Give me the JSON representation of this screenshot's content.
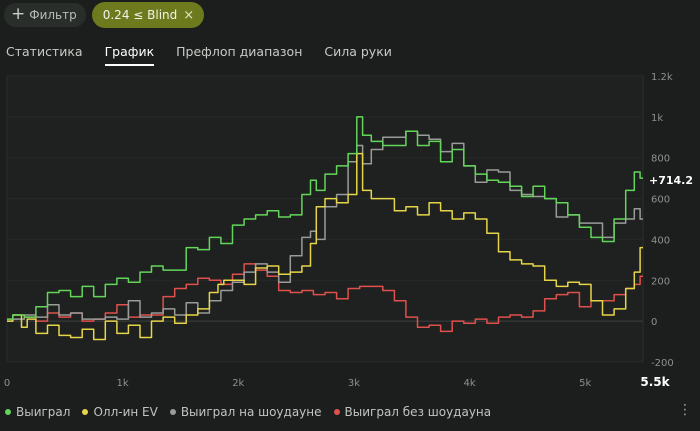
{
  "filters": {
    "add_filter_label": "Фильтр",
    "active_chip_label": "0.24 ≤ Blind",
    "remove_icon": "×"
  },
  "tabs": [
    {
      "label": "Статистика",
      "active": false
    },
    {
      "label": "График",
      "active": true
    },
    {
      "label": "Префлоп диапазон",
      "active": false
    },
    {
      "label": "Сила руки",
      "active": false
    }
  ],
  "colors": {
    "background": "#1b1e1c",
    "accent_chip": "#6e7a1e",
    "won": "#63d65a",
    "allin_ev": "#e6d54a",
    "showdown": "#9a9c9a",
    "non_showdown": "#e0504c"
  },
  "legend": {
    "won": "Выиграл",
    "allin_ev": "Олл-ин EV",
    "showdown": "Выиграл на шоудауне",
    "non_showdown": "Выиграл без шоудауна"
  },
  "chart_data": {
    "type": "line",
    "xlim": [
      0,
      5500
    ],
    "ylim": [
      -200,
      1200
    ],
    "x_ticks": [
      "0",
      "1k",
      "2k",
      "3k",
      "4k",
      "5k",
      "5.5k"
    ],
    "y_ticks": [
      "1.2k",
      "1k",
      "800",
      "600",
      "400",
      "200",
      "0",
      "-200"
    ],
    "y_tick_values": [
      1200,
      1000,
      800,
      600,
      400,
      200,
      0,
      -200
    ],
    "x_tick_values": [
      0,
      1000,
      2000,
      3000,
      4000,
      5000,
      5500
    ],
    "end_label": "+714.2",
    "series": [
      {
        "name": "Выиграл",
        "color": "#63d65a",
        "x": [
          0,
          100,
          200,
          300,
          400,
          500,
          600,
          700,
          800,
          900,
          1000,
          1100,
          1200,
          1300,
          1400,
          1500,
          1600,
          1700,
          1800,
          1900,
          2000,
          2100,
          2200,
          2300,
          2400,
          2500,
          2600,
          2650,
          2700,
          2800,
          2900,
          3000,
          3050,
          3100,
          3200,
          3300,
          3400,
          3500,
          3600,
          3700,
          3800,
          3900,
          4000,
          4100,
          4200,
          4300,
          4400,
          4500,
          4600,
          4700,
          4800,
          4900,
          5000,
          5100,
          5200,
          5300,
          5400,
          5450,
          5500
        ],
        "y": [
          10,
          30,
          20,
          70,
          140,
          150,
          120,
          170,
          120,
          180,
          210,
          190,
          240,
          270,
          250,
          250,
          360,
          350,
          410,
          380,
          470,
          500,
          520,
          540,
          510,
          520,
          620,
          690,
          640,
          720,
          760,
          820,
          1000,
          910,
          880,
          860,
          860,
          930,
          860,
          880,
          780,
          840,
          760,
          720,
          690,
          680,
          660,
          610,
          660,
          600,
          580,
          520,
          460,
          410,
          390,
          500,
          640,
          730,
          700
        ]
      },
      {
        "name": "Олл-ин EV",
        "color": "#e6d54a",
        "x": [
          0,
          100,
          150,
          200,
          300,
          400,
          500,
          600,
          700,
          800,
          900,
          1000,
          1100,
          1200,
          1300,
          1400,
          1500,
          1600,
          1700,
          1800,
          1850,
          1900,
          2000,
          2100,
          2200,
          2300,
          2400,
          2500,
          2600,
          2650,
          2700,
          2800,
          2900,
          3000,
          3050,
          3100,
          3200,
          3300,
          3400,
          3500,
          3600,
          3700,
          3800,
          3900,
          4000,
          4100,
          4200,
          4300,
          4400,
          4500,
          4600,
          4700,
          4800,
          4900,
          5000,
          5100,
          5200,
          5300,
          5400,
          5450,
          5500
        ],
        "y": [
          0,
          30,
          -30,
          10,
          -60,
          -20,
          -70,
          -80,
          -40,
          -90,
          0,
          -60,
          -20,
          -80,
          0,
          20,
          -10,
          30,
          60,
          140,
          180,
          200,
          200,
          180,
          260,
          270,
          230,
          240,
          270,
          380,
          560,
          600,
          580,
          620,
          820,
          640,
          600,
          600,
          540,
          560,
          520,
          580,
          540,
          500,
          530,
          500,
          430,
          340,
          300,
          280,
          270,
          200,
          170,
          190,
          180,
          100,
          30,
          60,
          160,
          240,
          360
        ]
      },
      {
        "name": "Выиграл на шоудауне",
        "color": "#9a9c9a",
        "x": [
          0,
          100,
          200,
          300,
          400,
          500,
          600,
          700,
          800,
          900,
          1000,
          1100,
          1200,
          1300,
          1400,
          1500,
          1600,
          1700,
          1800,
          1900,
          2000,
          2100,
          2200,
          2300,
          2400,
          2500,
          2600,
          2650,
          2700,
          2800,
          2900,
          3000,
          3050,
          3100,
          3200,
          3300,
          3400,
          3500,
          3600,
          3700,
          3800,
          3900,
          4000,
          4100,
          4200,
          4300,
          4400,
          4500,
          4600,
          4700,
          4800,
          4900,
          5000,
          5100,
          5200,
          5300,
          5400,
          5450,
          5500
        ],
        "y": [
          0,
          10,
          30,
          20,
          80,
          30,
          40,
          10,
          10,
          20,
          10,
          100,
          20,
          40,
          60,
          30,
          90,
          40,
          100,
          150,
          190,
          240,
          280,
          240,
          190,
          320,
          410,
          440,
          400,
          560,
          620,
          780,
          860,
          770,
          840,
          900,
          900,
          930,
          910,
          890,
          830,
          870,
          760,
          680,
          740,
          730,
          640,
          620,
          610,
          600,
          510,
          520,
          480,
          480,
          410,
          480,
          500,
          550,
          500
        ]
      },
      {
        "name": "Выиграл без шоудауна",
        "color": "#e0504c",
        "x": [
          0,
          100,
          200,
          300,
          400,
          500,
          600,
          700,
          800,
          900,
          1000,
          1100,
          1200,
          1300,
          1400,
          1500,
          1600,
          1700,
          1800,
          1900,
          2000,
          2100,
          2200,
          2300,
          2400,
          2500,
          2600,
          2700,
          2800,
          2900,
          3000,
          3100,
          3200,
          3300,
          3400,
          3500,
          3600,
          3700,
          3800,
          3900,
          4000,
          4100,
          4200,
          4300,
          4400,
          4500,
          4600,
          4700,
          4800,
          4900,
          5000,
          5100,
          5200,
          5300,
          5400,
          5450,
          5500
        ],
        "y": [
          10,
          30,
          20,
          0,
          40,
          20,
          40,
          0,
          10,
          40,
          80,
          20,
          30,
          30,
          120,
          160,
          180,
          210,
          200,
          180,
          230,
          280,
          250,
          220,
          150,
          140,
          150,
          130,
          140,
          110,
          160,
          170,
          170,
          150,
          100,
          20,
          -30,
          -20,
          -50,
          0,
          -10,
          10,
          -10,
          20,
          30,
          20,
          50,
          110,
          130,
          140,
          70,
          100,
          100,
          130,
          160,
          180,
          220
        ]
      }
    ]
  }
}
